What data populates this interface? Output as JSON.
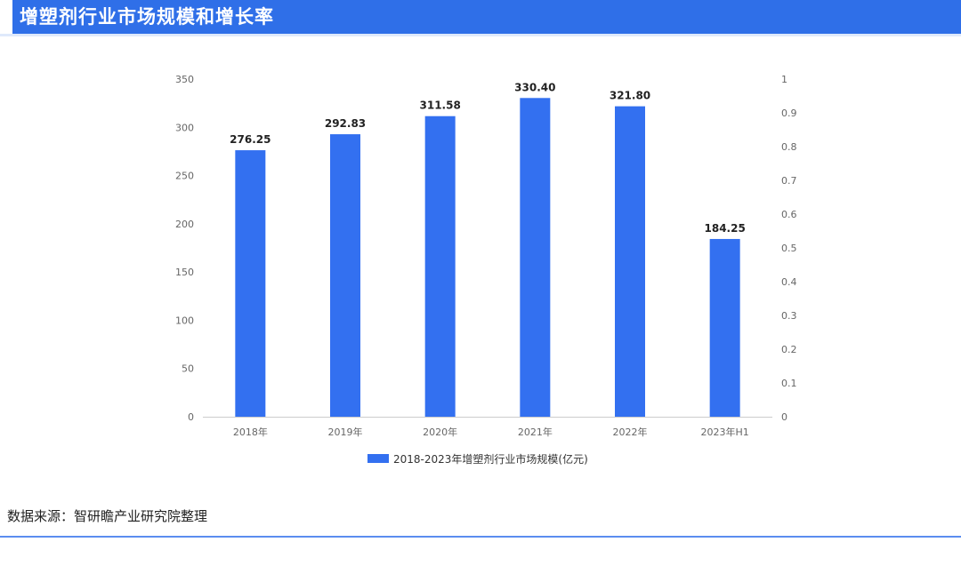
{
  "header": {
    "title": "增塑剂行业市场规模和增长率"
  },
  "source": {
    "text": "数据来源：智研瞻产业研究院整理"
  },
  "colors": {
    "bar": "#3370f0",
    "header": "#2f6fe8"
  },
  "chart_data": {
    "type": "bar",
    "title": "增塑剂行业市场规模和增长率",
    "categories": [
      "2018年",
      "2019年",
      "2020年",
      "2021年",
      "2022年",
      "2023年H1"
    ],
    "series": [
      {
        "name": "2018-2023年增塑剂行业市场规模(亿元)",
        "values": [
          276.25,
          292.83,
          311.58,
          330.4,
          321.8,
          184.25
        ],
        "value_labels": [
          "276.25",
          "292.83",
          "311.58",
          "330.40",
          "321.80",
          "184.25"
        ]
      }
    ],
    "ylim": [
      0,
      350
    ],
    "y_ticks": [
      "0",
      "50",
      "100",
      "150",
      "200",
      "250",
      "300",
      "350"
    ],
    "y2lim": [
      0,
      1
    ],
    "y2_ticks": [
      "0",
      "0.1",
      "0.2",
      "0.3",
      "0.4",
      "0.5",
      "0.6",
      "0.7",
      "0.8",
      "0.9",
      "1"
    ],
    "grid": false,
    "legend": "bottom"
  }
}
